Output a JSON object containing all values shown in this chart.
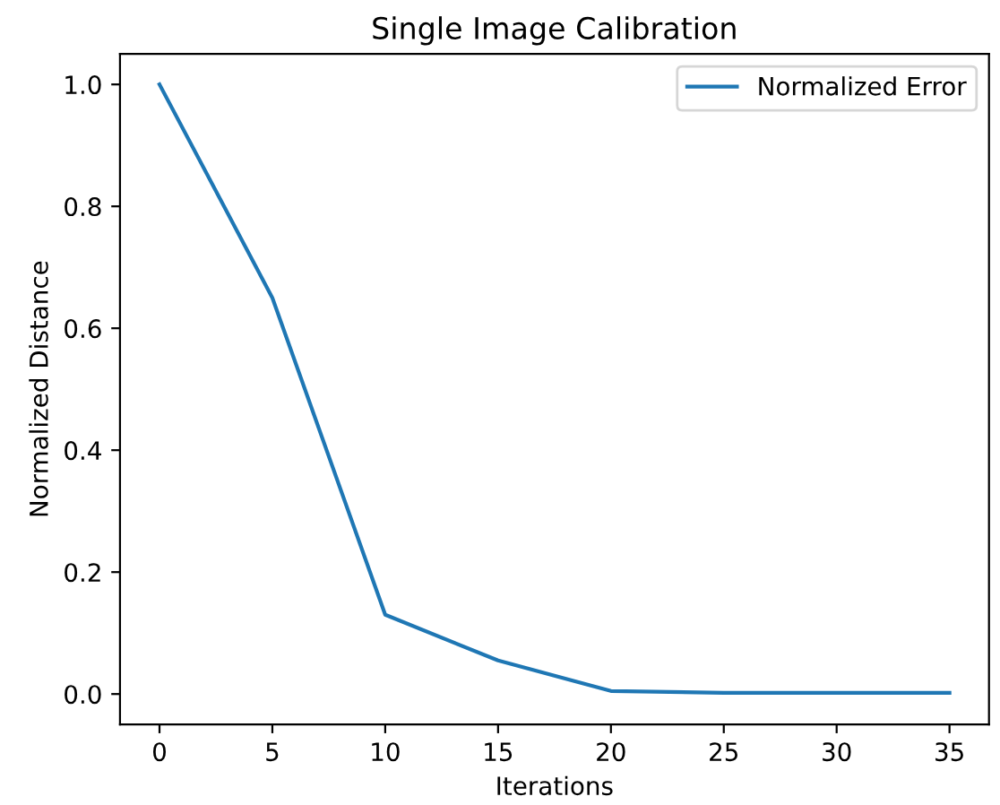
{
  "chart_data": {
    "type": "line",
    "title": "Single Image Calibration",
    "xlabel": "Iterations",
    "ylabel": "Normalized Distance",
    "x": [
      0,
      5,
      10,
      15,
      20,
      25,
      30,
      35
    ],
    "series": [
      {
        "name": "Normalized Error",
        "color": "#1f77b4",
        "values": [
          1.0,
          0.65,
          0.13,
          0.055,
          0.005,
          0.002,
          0.002,
          0.002
        ]
      }
    ],
    "xlim": [
      -1.75,
      36.75
    ],
    "ylim": [
      -0.05,
      1.05
    ],
    "xticks": [
      0,
      5,
      10,
      15,
      20,
      25,
      30,
      35
    ],
    "yticks": [
      {
        "value": 0,
        "label": "0.0"
      },
      {
        "value": 0.2,
        "label": "0.2"
      },
      {
        "value": 0.4,
        "label": "0.4"
      },
      {
        "value": 0.6,
        "label": "0.6"
      },
      {
        "value": 0.8,
        "label": "0.8"
      },
      {
        "value": 1.0,
        "label": "1.0"
      }
    ],
    "legend": "upper right",
    "grid": false,
    "marker": "none",
    "line_style": "solid"
  }
}
